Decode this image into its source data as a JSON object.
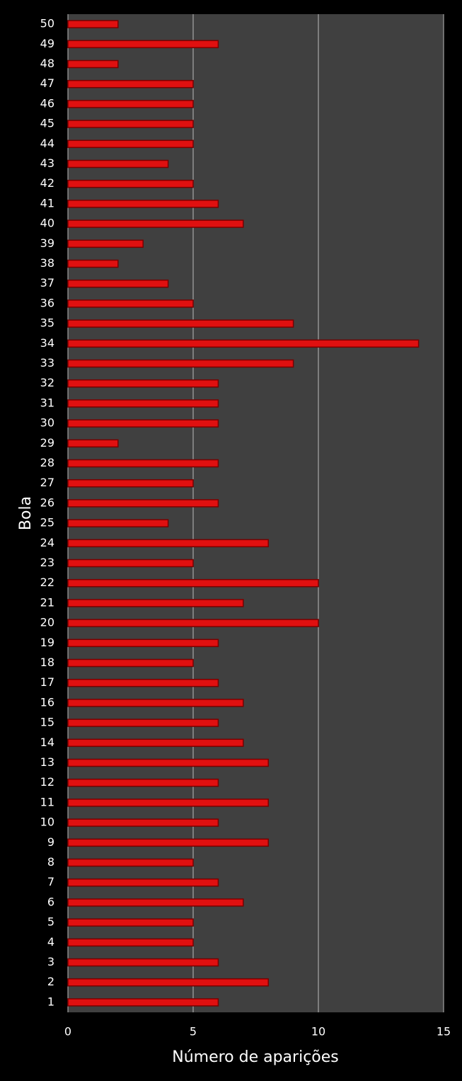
{
  "chart_data": {
    "type": "barh",
    "categories": [
      "1",
      "2",
      "3",
      "4",
      "5",
      "6",
      "7",
      "8",
      "9",
      "10",
      "11",
      "12",
      "13",
      "14",
      "15",
      "16",
      "17",
      "18",
      "19",
      "20",
      "21",
      "22",
      "23",
      "24",
      "25",
      "26",
      "27",
      "28",
      "29",
      "30",
      "31",
      "32",
      "33",
      "34",
      "35",
      "36",
      "37",
      "38",
      "39",
      "40",
      "41",
      "42",
      "43",
      "44",
      "45",
      "46",
      "47",
      "48",
      "49",
      "50"
    ],
    "values": [
      6,
      8,
      6,
      5,
      5,
      7,
      6,
      5,
      8,
      6,
      8,
      6,
      8,
      7,
      6,
      7,
      6,
      5,
      6,
      10,
      7,
      10,
      5,
      8,
      4,
      6,
      5,
      6,
      2,
      6,
      6,
      6,
      9,
      14,
      9,
      5,
      4,
      2,
      3,
      7,
      6,
      5,
      4,
      5,
      5,
      5,
      5,
      2,
      6,
      2
    ],
    "color": "#e01010",
    "xlabel": "Número de aparições",
    "ylabel": "Bola",
    "xlim": [
      0,
      15
    ],
    "xticks": [
      0,
      5,
      10,
      15
    ],
    "grid": true
  }
}
